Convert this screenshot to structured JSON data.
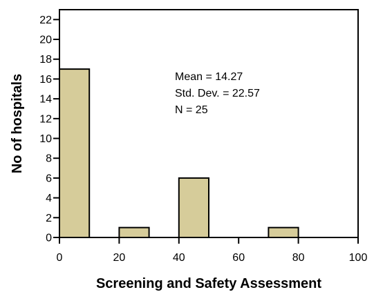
{
  "chart_data": {
    "type": "bar",
    "title": "",
    "xlabel": "Screening and Safety Assessment",
    "ylabel": "No of hospitals",
    "bins": [
      {
        "start": 0,
        "end": 10,
        "count": 17
      },
      {
        "start": 20,
        "end": 30,
        "count": 1
      },
      {
        "start": 40,
        "end": 50,
        "count": 6
      },
      {
        "start": 70,
        "end": 80,
        "count": 1
      }
    ],
    "xlim": [
      0,
      100
    ],
    "ylim": [
      0,
      23
    ],
    "x_ticks": [
      0,
      20,
      40,
      60,
      80,
      100
    ],
    "y_ticks": [
      0,
      2,
      4,
      6,
      8,
      10,
      12,
      14,
      16,
      18,
      20,
      22
    ],
    "grid": false,
    "bar_color": "#d6cc9a",
    "bar_edge_color": "#000000",
    "statistics": [
      "Mean = 14.27",
      "Std. Dev. = 22.57",
      "N = 25"
    ]
  }
}
